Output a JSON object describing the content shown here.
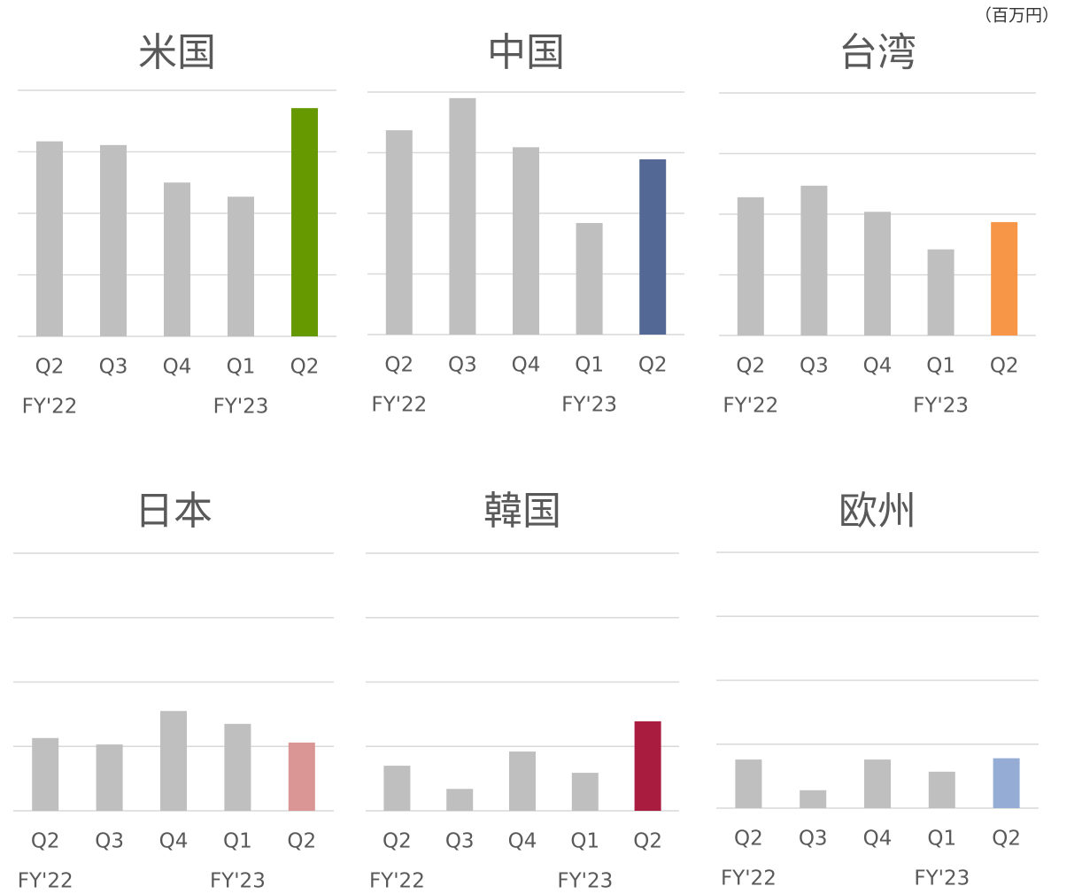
{
  "unit": "（百万円）",
  "chart_data": [
    {
      "type": "bar",
      "title": "米国",
      "categories": [
        "Q2",
        "Q3",
        "Q4",
        "Q1",
        "Q2"
      ],
      "x_groups": [
        "FY'22",
        null,
        null,
        "FY'23",
        null
      ],
      "values": [
        3.17,
        3.11,
        2.5,
        2.27,
        3.71
      ],
      "colors": [
        "#bfbfbf",
        "#bfbfbf",
        "#bfbfbf",
        "#bfbfbf",
        "#669900"
      ],
      "ylim": [
        0,
        4
      ],
      "yticks": [
        0,
        1,
        2,
        3,
        4
      ],
      "grid": true
    },
    {
      "type": "bar",
      "title": "中国",
      "categories": [
        "Q2",
        "Q3",
        "Q4",
        "Q1",
        "Q2"
      ],
      "x_groups": [
        "FY'22",
        null,
        null,
        "FY'23",
        null
      ],
      "values": [
        3.37,
        3.9,
        3.09,
        1.84,
        2.89
      ],
      "colors": [
        "#bfbfbf",
        "#bfbfbf",
        "#bfbfbf",
        "#bfbfbf",
        "#536895"
      ],
      "ylim": [
        0,
        4
      ],
      "yticks": [
        0,
        1,
        2,
        3,
        4
      ],
      "grid": true
    },
    {
      "type": "bar",
      "title": "台湾",
      "categories": [
        "Q2",
        "Q3",
        "Q4",
        "Q1",
        "Q2"
      ],
      "x_groups": [
        "FY'22",
        null,
        null,
        "FY'23",
        null
      ],
      "values": [
        2.28,
        2.47,
        2.04,
        1.42,
        1.87
      ],
      "colors": [
        "#bfbfbf",
        "#bfbfbf",
        "#bfbfbf",
        "#bfbfbf",
        "#f79646"
      ],
      "ylim": [
        0,
        4
      ],
      "yticks": [
        0,
        1,
        2,
        3,
        4
      ],
      "grid": true
    },
    {
      "type": "bar",
      "title": "日本",
      "categories": [
        "Q2",
        "Q3",
        "Q4",
        "Q1",
        "Q2"
      ],
      "x_groups": [
        "FY'22",
        null,
        null,
        "FY'23",
        null
      ],
      "values": [
        1.13,
        1.03,
        1.55,
        1.35,
        1.06
      ],
      "colors": [
        "#bfbfbf",
        "#bfbfbf",
        "#bfbfbf",
        "#bfbfbf",
        "#d99694"
      ],
      "ylim": [
        0,
        4
      ],
      "yticks": [
        0,
        1,
        2,
        3,
        4
      ],
      "grid": true
    },
    {
      "type": "bar",
      "title": "韓国",
      "categories": [
        "Q2",
        "Q3",
        "Q4",
        "Q1",
        "Q2"
      ],
      "x_groups": [
        "FY'22",
        null,
        null,
        "FY'23",
        null
      ],
      "values": [
        0.7,
        0.34,
        0.92,
        0.59,
        1.39
      ],
      "colors": [
        "#bfbfbf",
        "#bfbfbf",
        "#bfbfbf",
        "#bfbfbf",
        "#a91c3f"
      ],
      "ylim": [
        0,
        4
      ],
      "yticks": [
        0,
        1,
        2,
        3,
        4
      ],
      "grid": true
    },
    {
      "type": "bar",
      "title": "欧州",
      "categories": [
        "Q2",
        "Q3",
        "Q4",
        "Q1",
        "Q2"
      ],
      "x_groups": [
        "FY'22",
        null,
        null,
        "FY'23",
        null
      ],
      "values": [
        0.76,
        0.28,
        0.76,
        0.57,
        0.78
      ],
      "colors": [
        "#bfbfbf",
        "#bfbfbf",
        "#bfbfbf",
        "#bfbfbf",
        "#95acd5"
      ],
      "ylim": [
        0,
        4
      ],
      "yticks": [
        0,
        1,
        2,
        3,
        4
      ],
      "grid": true
    }
  ]
}
